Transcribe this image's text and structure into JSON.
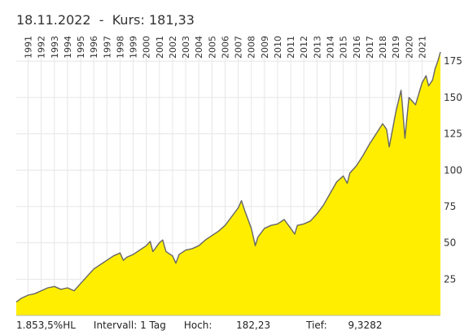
{
  "header": {
    "date": "18.11.2022",
    "separator": "-",
    "kurs_label": "Kurs:",
    "kurs_value": "181,33"
  },
  "footer": {
    "performance": "1.853,5%HL",
    "intervall": "Intervall: 1 Tag",
    "hoch_label": "Hoch:",
    "hoch_value": "182,23",
    "tief_label": "Tief:",
    "tief_value": "9,3282"
  },
  "colors": {
    "fill": "#ffee00",
    "line": "#666666",
    "grid": "#e6e6e6"
  },
  "chart_data": {
    "type": "area",
    "title": "",
    "xlabel": "",
    "ylabel": "",
    "xlim": [
      1990.6,
      2022.9
    ],
    "ylim": [
      0,
      188
    ],
    "y_ticks": [
      25,
      50,
      75,
      100,
      125,
      150,
      175
    ],
    "x_tick_labels": [
      "1991",
      "1992",
      "1993",
      "1994",
      "1995",
      "1996",
      "1997",
      "1998",
      "1999",
      "2000",
      "2001",
      "2002",
      "2003",
      "2004",
      "2005",
      "2006",
      "2007",
      "2008",
      "2009",
      "2010",
      "2011",
      "2012",
      "2013",
      "2014",
      "2015",
      "2016",
      "2017",
      "2018",
      "2019",
      "2020",
      "2021"
    ],
    "grid": true,
    "y_axis_position": "right",
    "x_axis_position": "top",
    "series": [
      {
        "x": [
          1990.6,
          1991.0,
          1991.5,
          1992.0,
          1992.5,
          1993.0,
          1993.5,
          1994.0,
          1994.5,
          1995.0,
          1995.5,
          1996.0,
          1996.5,
          1997.0,
          1997.5,
          1998.0,
          1998.5,
          1998.75,
          1999.0,
          1999.5,
          2000.0,
          2000.5,
          2000.8,
          2001.0,
          2001.5,
          2001.75,
          2002.0,
          2002.5,
          2002.75,
          2003.0,
          2003.5,
          2004.0,
          2004.5,
          2005.0,
          2005.5,
          2006.0,
          2006.5,
          2007.0,
          2007.5,
          2007.75,
          2008.0,
          2008.5,
          2008.8,
          2009.0,
          2009.5,
          2010.0,
          2010.5,
          2011.0,
          2011.5,
          2011.8,
          2012.0,
          2012.5,
          2013.0,
          2013.5,
          2014.0,
          2014.5,
          2015.0,
          2015.5,
          2015.8,
          2016.0,
          2016.5,
          2017.0,
          2017.5,
          2018.0,
          2018.5,
          2018.8,
          2019.0,
          2019.5,
          2019.9,
          2020.0,
          2020.2,
          2020.5,
          2021.0,
          2021.5,
          2021.8,
          2022.0,
          2022.3,
          2022.5,
          2022.7,
          2022.9
        ],
        "y": [
          9.3,
          12,
          14,
          15,
          17,
          19,
          20,
          18,
          19,
          17,
          22,
          27,
          32,
          35,
          38,
          41,
          43,
          38,
          40,
          42,
          45,
          48,
          51,
          44,
          50,
          52,
          44,
          41,
          36,
          42,
          45,
          46,
          48,
          52,
          55,
          58,
          62,
          68,
          74,
          79,
          72,
          60,
          48,
          54,
          60,
          62,
          63,
          66,
          60,
          56,
          62,
          63,
          65,
          70,
          76,
          84,
          92,
          96,
          91,
          98,
          103,
          110,
          118,
          125,
          132,
          128,
          116,
          140,
          155,
          145,
          122,
          150,
          145,
          160,
          165,
          158,
          162,
          170,
          175,
          181.33
        ]
      }
    ]
  }
}
